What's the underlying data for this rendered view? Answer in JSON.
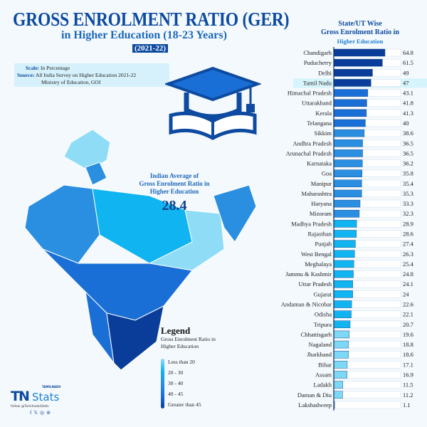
{
  "header": {
    "title": "GROSS ENROLMENT RATIO (GER)",
    "subtitle": "in Higher Education (18-23 Years)",
    "year": "(2021-22)"
  },
  "info": {
    "scale_label": "Scale:",
    "scale": "In Percentage",
    "source_label": "Source:",
    "source_line1": "All India Survey on Higher Education 2021-22",
    "source_line2": "Ministry of Education, GOI"
  },
  "average": {
    "label_line1": "Indian Average of",
    "label_line2": "Gross Enrolment Ratio in",
    "label_line3": "Higher Education",
    "value": "28.4"
  },
  "legend": {
    "title": "Legend",
    "subtitle_line1": "Gross Enrolment Ratio in",
    "subtitle_line2": "Higher Education",
    "items": [
      "Less than 20",
      "20 - 30",
      "30 - 40",
      "40 - 45",
      "Greater than 45"
    ],
    "colors": [
      "#7dd8f5",
      "#10b4f0",
      "#2a8fe0",
      "#1a6fd6",
      "#0a3d9a"
    ]
  },
  "brand": {
    "logo_small": "TAMILNADU",
    "logo_tn": "TN",
    "logo_stats": "Stats",
    "follow": "follow @TamilnaduStats",
    "social_icons": [
      "facebook-icon",
      "x-icon",
      "instagram-icon",
      "threads-icon"
    ]
  },
  "highlight": {
    "state": "Tamil Nadu",
    "color": "#d6f4fb"
  },
  "chart_data": {
    "type": "bar",
    "orientation": "horizontal",
    "title_line1": "State/UT Wise",
    "title_line2": "Gross Enrolment Ratio in",
    "title_line3": "Higher Education",
    "categories": [
      "Chandigarh",
      "Puducherry",
      "Delhi",
      "Tamil Nadu",
      "Himachal Pradesh",
      "Uttarakhand",
      "Kerala",
      "Telangana",
      "Sikkim",
      "Andhra Pradesh",
      "Arunachal Pradesh",
      "Karnataka",
      "Goa",
      "Manipur",
      "Maharashtra",
      "Haryana",
      "Mizoram",
      "Madhya Pradesh",
      "Rajasthan",
      "Punjab",
      "West Bengal",
      "Meghalaya",
      "Jammu & Kashmir",
      "Uttar Pradesh",
      "Gujarat",
      "Andaman & Nicobar",
      "Odisha",
      "Tripura",
      "Chhattisgarh",
      "Nagaland",
      "Jharkhand",
      "Bihar",
      "Assam",
      "Ladakh",
      "Daman & Diu",
      "Lakshadweep"
    ],
    "values": [
      64.8,
      61.5,
      49,
      47,
      43.1,
      41.8,
      41.3,
      40,
      38.6,
      36.5,
      36.5,
      36.2,
      35.8,
      35.4,
      35.3,
      33.3,
      32.3,
      28.9,
      28.6,
      27.4,
      26.3,
      25.4,
      24.8,
      24.1,
      24,
      22.6,
      22.1,
      20.7,
      19.6,
      18.8,
      18.6,
      17.1,
      16.9,
      11.5,
      11.2,
      1.1
    ],
    "value_labels": [
      "64.8",
      "61.5",
      "49",
      "47",
      "43.1",
      "41.8",
      "41.3",
      "40",
      "38.6",
      "36.5",
      "36.5",
      "36.2",
      "35.8",
      "35.4",
      "35.3",
      "33.3",
      "32.3",
      "28.9",
      "28.6",
      "27.4",
      "26.3",
      "25.4",
      "24.8",
      "24.1",
      "24",
      "22.6",
      "22.1",
      "20.7",
      "19.6",
      "18.8",
      "18.6",
      "17.1",
      "16.9",
      "11.5",
      "11.2",
      "1.1"
    ],
    "xlabel": "",
    "ylabel": ""
  }
}
